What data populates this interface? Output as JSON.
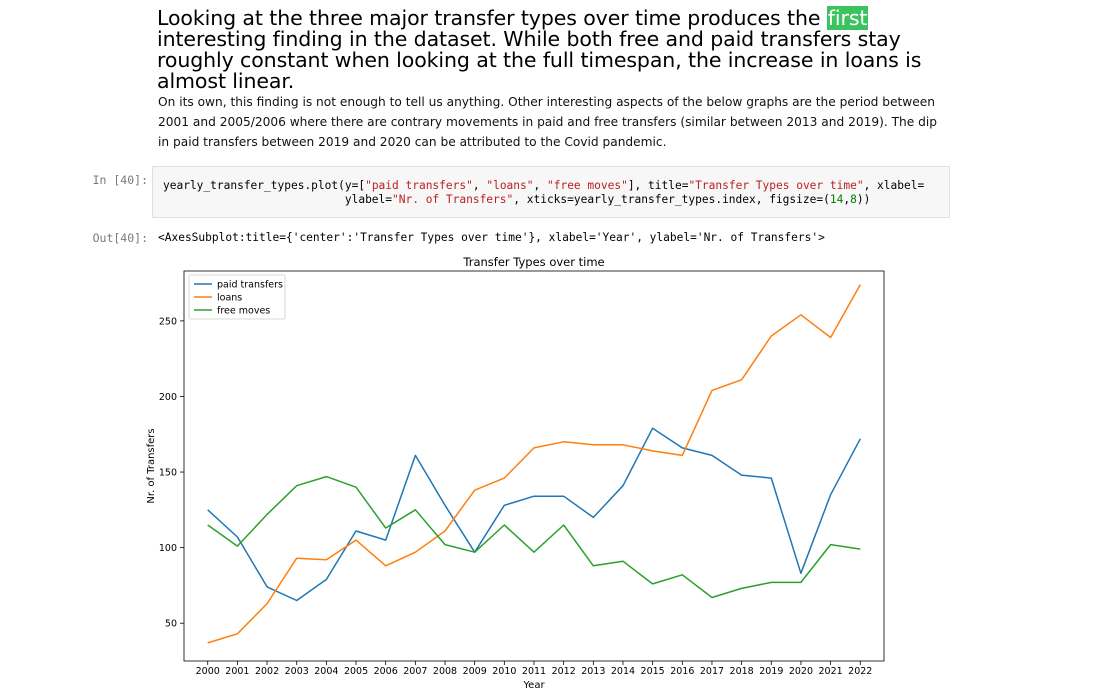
{
  "markdown": {
    "heading_before": "Looking at the three major transfer types over time produces the ",
    "heading_highlight": "first",
    "heading_after": " interesting finding in the dataset. While both free and paid transfers stay roughly constant when looking at the full timespan, the increase in loans is almost linear.",
    "paragraph": "On its own, this finding is not enough to tell us anything. Other interesting aspects of the below graphs are the period between 2001 and 2005/2006 where there are contrary movements in paid and free transfers (similar between 2013 and 2019). The dip in paid transfers between 2019 and 2020 can be attributed to the Covid pandemic."
  },
  "cell_in": {
    "prompt": "In [40]:",
    "line1_a": "yearly_transfer_types.plot(y=[",
    "line1_s1": "\"paid transfers\"",
    "line1_c1": ", ",
    "line1_s2": "\"loans\"",
    "line1_c2": ", ",
    "line1_s3": "\"free moves\"",
    "line1_b": "], title=",
    "line1_s4": "\"Transfer Types over time\"",
    "line1_c3": ", xlabel=",
    "line2_a": "                           ylabel=",
    "line2_s1": "\"Nr. of Transfers\"",
    "line2_b": ", xticks=yearly_transfer_types.index, figsize=(",
    "line2_n1": "14",
    "line2_c1": ",",
    "line2_n2": "8",
    "line2_c2": "))"
  },
  "cell_out": {
    "prompt": "Out[40]:",
    "text": "<AxesSubplot:title={'center':'Transfer Types over time'}, xlabel='Year', ylabel='Nr. of Transfers'>"
  },
  "chart_data": {
    "type": "line",
    "title": "Transfer Types over time",
    "xlabel": "Year",
    "ylabel": "Nr. of Transfers",
    "x": [
      2000,
      2001,
      2002,
      2003,
      2004,
      2005,
      2006,
      2007,
      2008,
      2009,
      2010,
      2011,
      2012,
      2013,
      2014,
      2015,
      2016,
      2017,
      2018,
      2019,
      2020,
      2021,
      2022
    ],
    "xlim": [
      1999.2,
      2022.8
    ],
    "ylim": [
      25,
      283
    ],
    "yticks": [
      50,
      100,
      150,
      200,
      250
    ],
    "legend_position": "upper-left",
    "grid": false,
    "series": [
      {
        "name": "paid transfers",
        "color": "#1f77b4",
        "values": [
          125,
          107,
          74,
          65,
          79,
          111,
          105,
          161,
          128,
          97,
          128,
          134,
          134,
          120,
          141,
          179,
          166,
          161,
          148,
          146,
          83,
          135,
          172
        ]
      },
      {
        "name": "loans",
        "color": "#ff7f0e",
        "values": [
          37,
          43,
          63,
          93,
          92,
          105,
          88,
          97,
          111,
          138,
          146,
          166,
          170,
          168,
          168,
          164,
          161,
          204,
          211,
          240,
          254,
          239,
          274
        ]
      },
      {
        "name": "free moves",
        "color": "#2ca02c",
        "values": [
          115,
          101,
          122,
          141,
          147,
          140,
          113,
          125,
          102,
          97,
          115,
          97,
          115,
          88,
          91,
          76,
          82,
          67,
          73,
          77,
          77,
          102,
          99
        ]
      }
    ]
  }
}
